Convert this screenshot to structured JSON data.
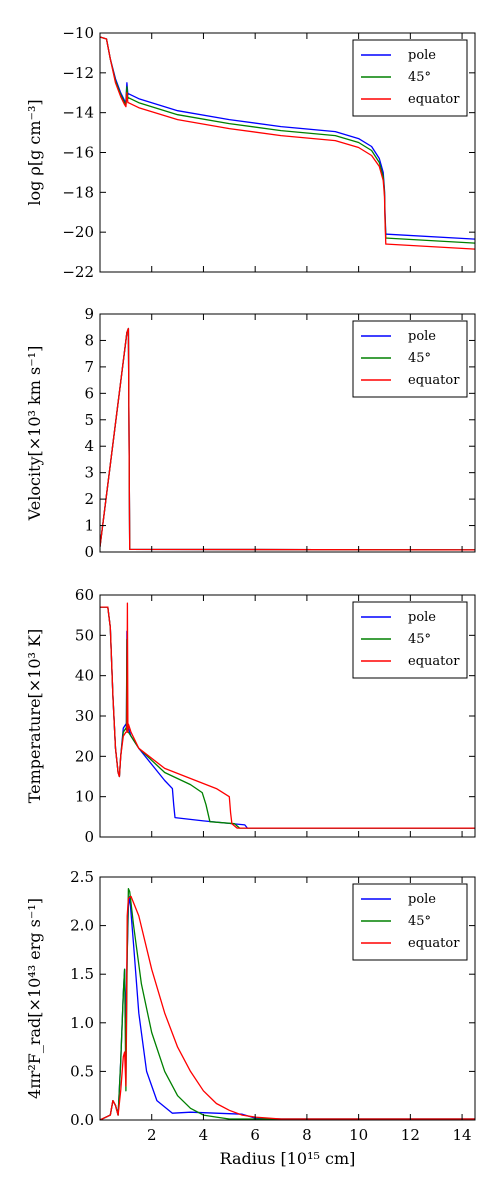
{
  "chart_data": [
    {
      "type": "line",
      "ylabel": "log ρ[g cm⁻³]",
      "xlabel": "",
      "xlim": [
        0.0,
        14.5
      ],
      "ylim": [
        -22,
        -10
      ],
      "xticks": [
        2,
        4,
        6,
        8,
        10,
        12,
        14
      ],
      "xtick_labels": [
        "",
        "",
        "",
        "",
        "",
        "",
        ""
      ],
      "yticks": [
        -22,
        -20,
        -18,
        -16,
        -14,
        -12,
        -10
      ],
      "ytick_labels": [
        "−22",
        "−20",
        "−18",
        "−16",
        "−14",
        "−12",
        "−10"
      ],
      "legend_position": "top-right",
      "series": [
        {
          "name": "pole",
          "color": "#0000ff",
          "x": [
            0.0,
            0.25,
            0.4,
            0.6,
            0.8,
            0.95,
            1.0,
            1.02,
            1.04,
            1.06,
            1.08,
            1.1,
            1.5,
            3,
            5,
            7,
            9.1,
            10,
            10.5,
            10.8,
            10.95,
            11.0,
            11.02,
            11.05,
            11.1,
            14.5
          ],
          "y": [
            -10.2,
            -10.3,
            -11.3,
            -12.3,
            -13.0,
            -13.4,
            -13.5,
            -12.9,
            -12.5,
            -12.8,
            -13.1,
            -13.05,
            -13.3,
            -13.9,
            -14.35,
            -14.7,
            -14.95,
            -15.3,
            -15.7,
            -16.3,
            -17.0,
            -17.9,
            -19.0,
            -20.1,
            -20.1,
            -20.35
          ]
        },
        {
          "name": "45°",
          "color": "#008000",
          "x": [
            0.0,
            0.25,
            0.4,
            0.6,
            0.8,
            0.95,
            1.0,
            1.02,
            1.04,
            1.06,
            1.08,
            1.1,
            1.5,
            3,
            5,
            7,
            9.1,
            10,
            10.5,
            10.8,
            10.95,
            11.0,
            11.02,
            11.05,
            11.1,
            14.5
          ],
          "y": [
            -10.2,
            -10.3,
            -11.3,
            -12.4,
            -13.1,
            -13.5,
            -13.6,
            -13.1,
            -12.7,
            -13.0,
            -13.3,
            -13.25,
            -13.5,
            -14.1,
            -14.55,
            -14.9,
            -15.15,
            -15.5,
            -15.9,
            -16.5,
            -17.2,
            -18.0,
            -19.2,
            -20.3,
            -20.3,
            -20.55
          ]
        },
        {
          "name": "equator",
          "color": "#ff0000",
          "x": [
            0.0,
            0.25,
            0.4,
            0.6,
            0.8,
            0.95,
            1.0,
            1.02,
            1.04,
            1.06,
            1.08,
            1.1,
            1.5,
            3,
            5,
            7,
            9.1,
            10,
            10.5,
            10.8,
            10.95,
            11.0,
            11.02,
            11.05,
            11.1,
            14.5
          ],
          "y": [
            -10.2,
            -10.3,
            -11.3,
            -12.5,
            -13.2,
            -13.6,
            -13.7,
            -13.4,
            -13.0,
            -13.3,
            -13.5,
            -13.5,
            -13.75,
            -14.35,
            -14.8,
            -15.15,
            -15.4,
            -15.75,
            -16.15,
            -16.7,
            -17.4,
            -18.2,
            -19.4,
            -20.6,
            -20.6,
            -20.85
          ]
        }
      ]
    },
    {
      "type": "line",
      "ylabel": "Velocity[×10³ km s⁻¹]",
      "xlabel": "",
      "xlim": [
        0.0,
        14.5
      ],
      "ylim": [
        0,
        9
      ],
      "xticks": [
        2,
        4,
        6,
        8,
        10,
        12,
        14
      ],
      "xtick_labels": [
        "",
        "",
        "",
        "",
        "",
        "",
        ""
      ],
      "yticks": [
        0,
        1,
        2,
        3,
        4,
        5,
        6,
        7,
        8,
        9
      ],
      "ytick_labels": [
        "0",
        "1",
        "2",
        "3",
        "4",
        "5",
        "6",
        "7",
        "8",
        "9"
      ],
      "legend_position": "top-right",
      "series": [
        {
          "name": "pole",
          "color": "#0000ff",
          "x": [
            0.0,
            1.04,
            1.1,
            1.15,
            14.5
          ],
          "y": [
            0.2,
            8.3,
            8.45,
            0.1,
            0.08
          ]
        },
        {
          "name": "45°",
          "color": "#008000",
          "x": [
            0.0,
            1.04,
            1.1,
            1.15,
            14.5
          ],
          "y": [
            0.2,
            8.3,
            8.45,
            0.1,
            0.08
          ]
        },
        {
          "name": "equator",
          "color": "#ff0000",
          "x": [
            0.0,
            1.04,
            1.1,
            1.15,
            14.5
          ],
          "y": [
            0.2,
            8.3,
            8.45,
            0.1,
            0.08
          ]
        }
      ]
    },
    {
      "type": "line",
      "ylabel": "Temperature[×10³ K]",
      "xlabel": "",
      "xlim": [
        0.0,
        14.5
      ],
      "ylim": [
        0,
        60
      ],
      "xticks": [
        2,
        4,
        6,
        8,
        10,
        12,
        14
      ],
      "xtick_labels": [
        "",
        "",
        "",
        "",
        "",
        "",
        ""
      ],
      "yticks": [
        0,
        10,
        20,
        30,
        40,
        50,
        60
      ],
      "ytick_labels": [
        "0",
        "10",
        "20",
        "30",
        "40",
        "50",
        "60"
      ],
      "legend_position": "top-right",
      "series": [
        {
          "name": "pole",
          "color": "#0000ff",
          "x": [
            0.0,
            0.3,
            0.4,
            0.5,
            0.6,
            0.7,
            0.75,
            0.8,
            0.9,
            1.0,
            1.02,
            1.04,
            1.06,
            1.1,
            1.2,
            1.5,
            2.0,
            2.5,
            2.8,
            2.85,
            2.9,
            4,
            5.6,
            5.7,
            14.5
          ],
          "y": [
            57,
            57,
            52,
            35,
            22,
            16,
            15,
            20,
            27,
            28,
            27.5,
            51,
            27,
            27,
            25,
            22,
            18,
            14,
            12,
            8,
            4.8,
            4.0,
            3.0,
            2.2,
            2.2
          ]
        },
        {
          "name": "45°",
          "color": "#008000",
          "x": [
            0.0,
            0.3,
            0.4,
            0.5,
            0.6,
            0.7,
            0.75,
            0.8,
            0.9,
            1.0,
            1.02,
            1.04,
            1.06,
            1.1,
            1.2,
            1.5,
            2.5,
            3.5,
            3.95,
            4.1,
            4.25,
            5.2,
            5.4,
            14.5
          ],
          "y": [
            57,
            57,
            52,
            35,
            22,
            16,
            15,
            20,
            26,
            27,
            26.5,
            49,
            26,
            26,
            25,
            22,
            16,
            13,
            11,
            8,
            3.8,
            3.3,
            2.2,
            2.2
          ]
        },
        {
          "name": "equator",
          "color": "#ff0000",
          "x": [
            0.0,
            0.3,
            0.4,
            0.5,
            0.6,
            0.7,
            0.75,
            0.8,
            0.9,
            1.0,
            1.04,
            1.06,
            1.08,
            1.1,
            1.2,
            1.5,
            2.5,
            3.5,
            4.5,
            5.0,
            5.05,
            5.1,
            5.3,
            14.5
          ],
          "y": [
            57,
            57,
            52,
            35,
            22,
            16,
            15,
            20,
            25,
            26,
            26,
            58,
            26,
            28,
            26,
            22,
            17,
            14.5,
            12,
            10,
            6,
            3.3,
            2.2,
            2.2
          ]
        }
      ]
    },
    {
      "type": "line",
      "ylabel": "4πr²F_rad[×10⁴³ erg s⁻¹]",
      "xlabel": "Radius [10¹⁵ cm]",
      "xlim": [
        0.0,
        14.5
      ],
      "ylim": [
        0,
        2.5
      ],
      "xticks": [
        2,
        4,
        6,
        8,
        10,
        12,
        14
      ],
      "xtick_labels": [
        "2",
        "4",
        "6",
        "8",
        "10",
        "12",
        "14"
      ],
      "yticks": [
        0.0,
        0.5,
        1.0,
        1.5,
        2.0,
        2.5
      ],
      "ytick_labels": [
        "0.0",
        "0.5",
        "1.0",
        "1.5",
        "2.0",
        "2.5"
      ],
      "legend_position": "top-right",
      "series": [
        {
          "name": "pole",
          "color": "#0000ff",
          "x": [
            0.0,
            0.4,
            0.5,
            0.6,
            0.7,
            0.8,
            0.9,
            0.95,
            1.0,
            1.05,
            1.1,
            1.15,
            1.3,
            1.5,
            1.8,
            2.2,
            2.8,
            3.5,
            4.5,
            5.5,
            6.0,
            7.0,
            14.5
          ],
          "y": [
            0.0,
            0.05,
            0.2,
            0.15,
            0.05,
            0.6,
            1.3,
            1.55,
            1.0,
            1.7,
            2.2,
            2.3,
            1.8,
            1.1,
            0.5,
            0.2,
            0.07,
            0.08,
            0.07,
            0.06,
            0.02,
            0.01,
            0.01
          ]
        },
        {
          "name": "45°",
          "color": "#008000",
          "x": [
            0.0,
            0.4,
            0.5,
            0.6,
            0.7,
            0.8,
            0.9,
            0.95,
            1.0,
            1.05,
            1.1,
            1.15,
            1.3,
            1.6,
            2.0,
            2.5,
            3.0,
            3.5,
            4.0,
            4.5,
            5.0,
            14.5
          ],
          "y": [
            0.0,
            0.05,
            0.2,
            0.15,
            0.05,
            0.6,
            1.3,
            1.55,
            0.3,
            1.7,
            2.38,
            2.35,
            2.0,
            1.4,
            0.9,
            0.5,
            0.25,
            0.12,
            0.05,
            0.03,
            0.01,
            0.01
          ]
        },
        {
          "name": "equator",
          "color": "#ff0000",
          "x": [
            0.0,
            0.4,
            0.5,
            0.6,
            0.7,
            0.8,
            0.9,
            0.95,
            1.0,
            1.05,
            1.1,
            1.2,
            1.5,
            2.0,
            2.5,
            3.0,
            3.5,
            4.0,
            4.5,
            5.0,
            5.5,
            6.0,
            7.0,
            14.5
          ],
          "y": [
            0.0,
            0.05,
            0.2,
            0.15,
            0.05,
            0.3,
            0.65,
            0.7,
            0.35,
            2.1,
            2.28,
            2.3,
            2.1,
            1.55,
            1.1,
            0.75,
            0.5,
            0.3,
            0.17,
            0.1,
            0.05,
            0.03,
            0.01,
            0.01
          ]
        }
      ]
    }
  ]
}
